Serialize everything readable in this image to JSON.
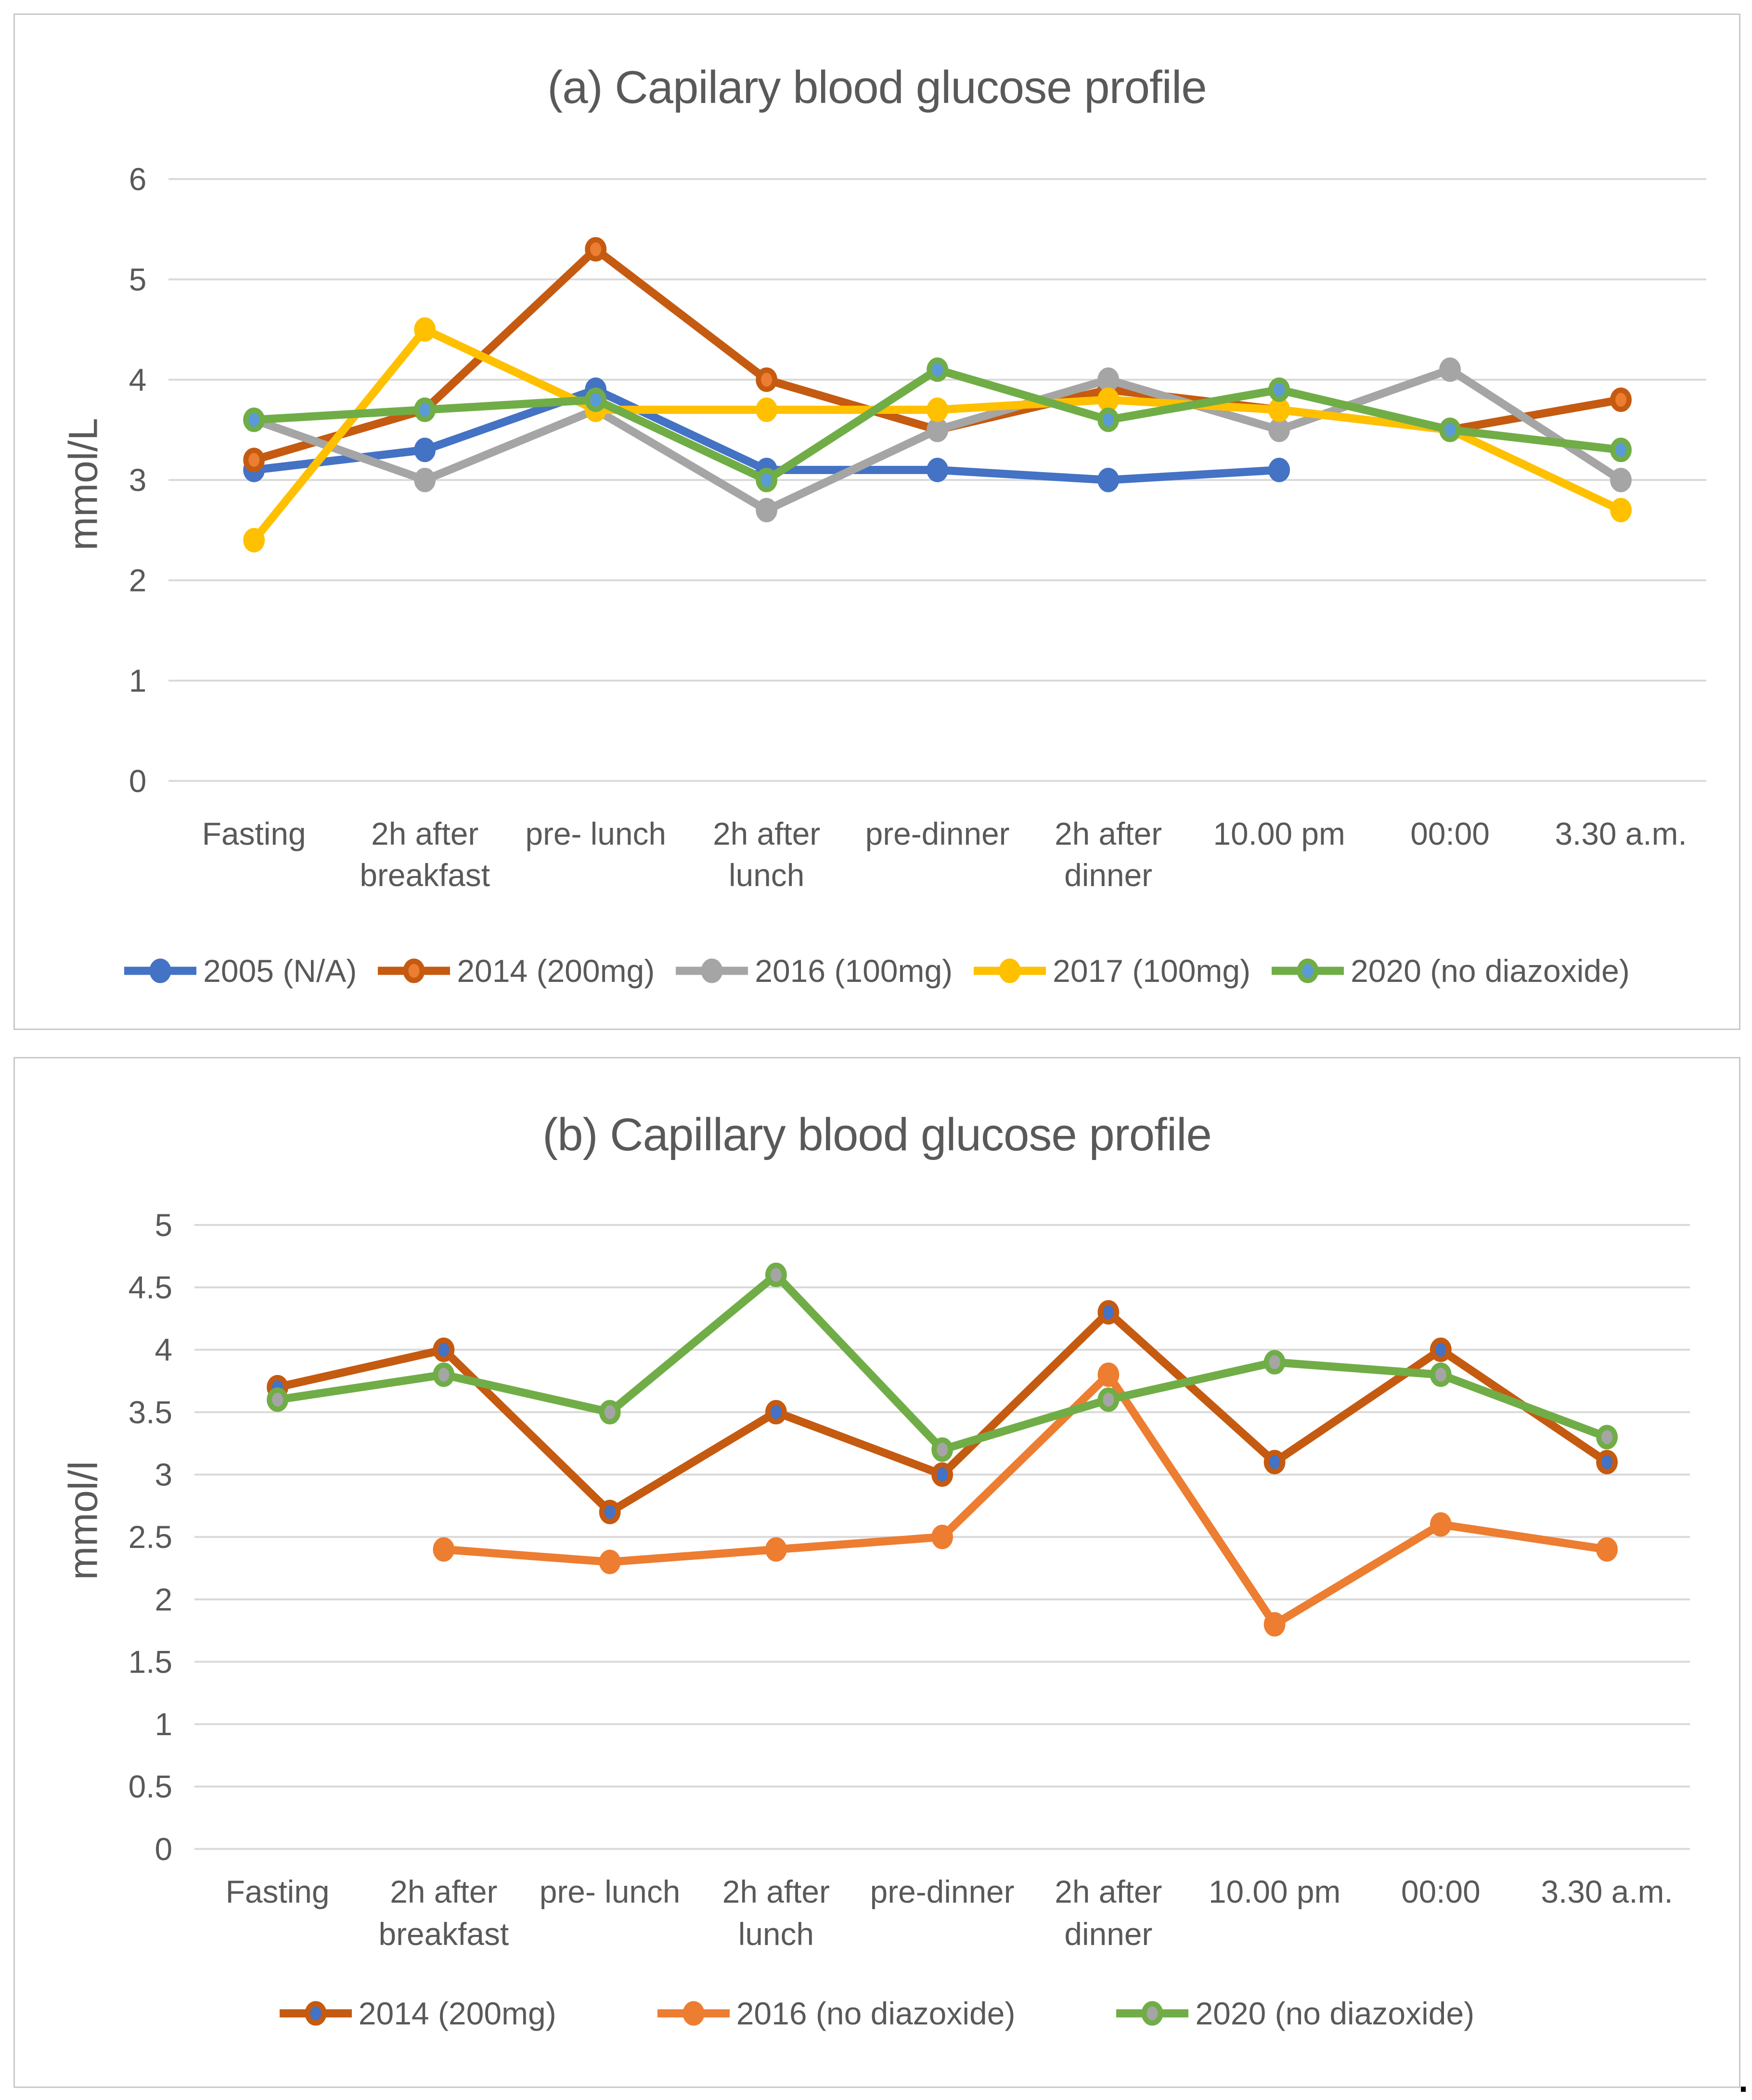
{
  "page": {
    "stray_mark": ".",
    "colors": {
      "background": "#FFFFFF",
      "panel_border": "#C9C9C9",
      "grid": "#D9D9D9",
      "text": "#595959"
    }
  },
  "chart_data": [
    {
      "type": "line",
      "title": "(a) Capilary blood glucose profile",
      "ylabel": "mmol/L",
      "xlabel": "",
      "ylim": [
        0,
        6
      ],
      "y_tick_step": 1,
      "grid": true,
      "legend_position": "bottom",
      "categories": [
        [
          "Fasting"
        ],
        [
          "2h after",
          "breakfast"
        ],
        [
          "pre- lunch"
        ],
        [
          "2h after",
          "lunch"
        ],
        [
          "pre-dinner"
        ],
        [
          "2h after",
          "dinner"
        ],
        [
          "10.00 pm"
        ],
        [
          "00:00"
        ],
        [
          "3.30 a.m."
        ]
      ],
      "series": [
        {
          "name": "2005 (N/A)",
          "color": "#4472C4",
          "marker_fill": "#4472C4",
          "values": [
            3.1,
            3.3,
            3.9,
            3.1,
            3.1,
            3.0,
            3.1,
            null,
            null
          ]
        },
        {
          "name": "2014 (200mg)",
          "color": "#C55A11",
          "marker_fill": "#ED7D31",
          "values": [
            3.2,
            3.7,
            5.3,
            4.0,
            3.5,
            3.9,
            3.7,
            3.5,
            3.8
          ]
        },
        {
          "name": "2016 (100mg)",
          "color": "#A5A5A5",
          "marker_fill": "#A5A5A5",
          "values": [
            3.6,
            3.0,
            3.7,
            2.7,
            3.5,
            4.0,
            3.5,
            4.1,
            3.0
          ]
        },
        {
          "name": "2017 (100mg)",
          "color": "#FFC000",
          "marker_fill": "#FFC000",
          "values": [
            2.4,
            4.5,
            3.7,
            3.7,
            3.7,
            3.8,
            3.7,
            3.5,
            2.7
          ]
        },
        {
          "name": "2020 (no diazoxide)",
          "color": "#70AD47",
          "marker_fill": "#5B9BD5",
          "values": [
            3.6,
            3.7,
            3.8,
            3.0,
            4.1,
            3.6,
            3.9,
            3.5,
            3.3
          ]
        }
      ]
    },
    {
      "type": "line",
      "title": "(b) Capillary blood glucose profile",
      "ylabel": "mmol/l",
      "xlabel": "",
      "ylim": [
        0,
        5
      ],
      "y_tick_step": 0.5,
      "grid": true,
      "legend_position": "bottom",
      "categories": [
        [
          "Fasting"
        ],
        [
          "2h after",
          "breakfast"
        ],
        [
          "pre- lunch"
        ],
        [
          "2h after",
          "lunch"
        ],
        [
          "pre-dinner"
        ],
        [
          "2h after",
          "dinner"
        ],
        [
          "10.00 pm"
        ],
        [
          "00:00"
        ],
        [
          "3.30 a.m."
        ]
      ],
      "series": [
        {
          "name": "2014 (200mg)",
          "color": "#C55A11",
          "marker_fill": "#4472C4",
          "values": [
            3.7,
            4.0,
            2.7,
            3.5,
            3.0,
            4.3,
            3.1,
            4.0,
            3.1
          ]
        },
        {
          "name": "2016 (no diazoxide)",
          "color": "#ED7D31",
          "marker_fill": "#ED7D31",
          "values": [
            null,
            2.4,
            2.3,
            2.4,
            2.5,
            3.8,
            1.8,
            2.6,
            2.4
          ]
        },
        {
          "name": "2020 (no diazoxide)",
          "color": "#70AD47",
          "marker_fill": "#A5A5A5",
          "values": [
            3.6,
            3.8,
            3.5,
            4.6,
            3.2,
            3.6,
            3.9,
            3.8,
            3.3
          ]
        }
      ]
    }
  ]
}
